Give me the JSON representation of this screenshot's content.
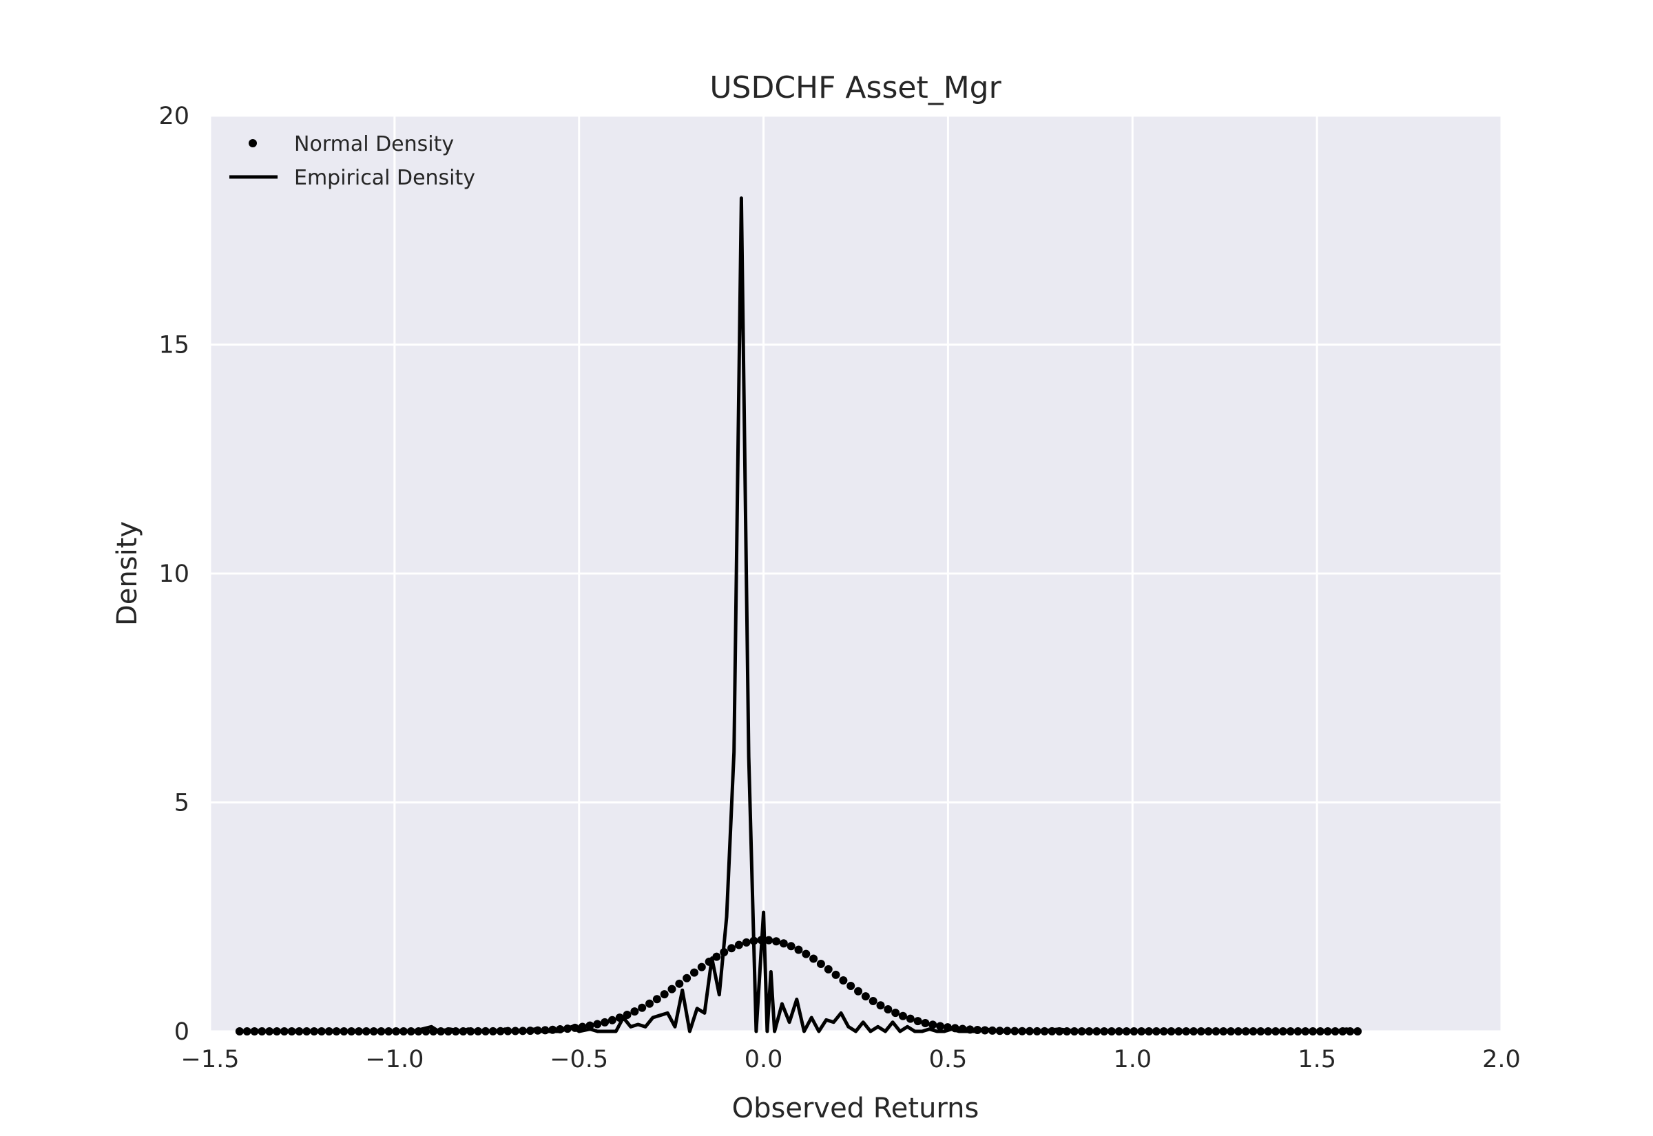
{
  "chart_data": {
    "type": "line",
    "title": "USDCHF Asset_Mgr",
    "xlabel": "Observed Returns",
    "ylabel": "Density",
    "xlim": [
      -1.5,
      2.0
    ],
    "ylim": [
      0,
      20
    ],
    "xticks": [
      -1.5,
      -1.0,
      -0.5,
      0.0,
      0.5,
      1.0,
      1.5,
      2.0
    ],
    "xtick_labels": [
      "−1.5",
      "−1.0",
      "−0.5",
      "0.0",
      "0.5",
      "1.0",
      "1.5",
      "2.0"
    ],
    "yticks": [
      0,
      5,
      10,
      15,
      20
    ],
    "ytick_labels": [
      "0",
      "5",
      "10",
      "15",
      "20"
    ],
    "grid": true,
    "legend_position": "top-left",
    "colors": {
      "plot_background": "#eaeaf2",
      "grid": "#ffffff",
      "series": "#000000"
    },
    "series": [
      {
        "name": "Normal Density",
        "style": "dots",
        "distribution": {
          "mean": 0.0,
          "std": 0.2,
          "x_min": -1.42,
          "x_max": 1.61,
          "n_points": 151
        }
      },
      {
        "name": "Empirical Density",
        "style": "line",
        "x": [
          -1.42,
          -1.3,
          -1.2,
          -1.1,
          -1.0,
          -0.95,
          -0.9,
          -0.88,
          -0.85,
          -0.82,
          -0.8,
          -0.78,
          -0.75,
          -0.72,
          -0.7,
          -0.68,
          -0.65,
          -0.62,
          -0.6,
          -0.58,
          -0.55,
          -0.52,
          -0.5,
          -0.47,
          -0.45,
          -0.42,
          -0.4,
          -0.38,
          -0.36,
          -0.34,
          -0.32,
          -0.3,
          -0.28,
          -0.26,
          -0.24,
          -0.22,
          -0.2,
          -0.18,
          -0.16,
          -0.14,
          -0.12,
          -0.1,
          -0.08,
          -0.06,
          -0.04,
          -0.02,
          0.0,
          0.01,
          0.02,
          0.03,
          0.05,
          0.07,
          0.09,
          0.11,
          0.13,
          0.15,
          0.17,
          0.19,
          0.21,
          0.23,
          0.25,
          0.27,
          0.29,
          0.31,
          0.33,
          0.35,
          0.37,
          0.39,
          0.41,
          0.43,
          0.45,
          0.47,
          0.49,
          0.51,
          0.53,
          0.55,
          0.57,
          0.6,
          0.65,
          0.7,
          0.75,
          0.8,
          0.85,
          0.9,
          1.0,
          1.1,
          1.2,
          1.3,
          1.4,
          1.5,
          1.55,
          1.58,
          1.6,
          1.61
        ],
        "y": [
          0.0,
          0.0,
          0.0,
          0.0,
          0.0,
          0.0,
          0.1,
          0.0,
          0.05,
          0.0,
          0.05,
          0.0,
          0.0,
          0.0,
          0.05,
          0.0,
          0.0,
          0.05,
          0.0,
          0.0,
          0.0,
          0.1,
          0.0,
          0.05,
          0.0,
          0.0,
          0.0,
          0.3,
          0.1,
          0.15,
          0.1,
          0.3,
          0.35,
          0.4,
          0.1,
          0.9,
          0.0,
          0.5,
          0.4,
          1.6,
          0.8,
          2.5,
          6.1,
          18.2,
          6.0,
          0.0,
          2.6,
          0.0,
          1.3,
          0.0,
          0.6,
          0.2,
          0.7,
          0.0,
          0.3,
          0.0,
          0.25,
          0.2,
          0.4,
          0.1,
          0.0,
          0.2,
          0.0,
          0.1,
          0.0,
          0.2,
          0.0,
          0.1,
          0.0,
          0.0,
          0.05,
          0.0,
          0.0,
          0.05,
          0.0,
          0.0,
          0.0,
          0.05,
          0.0,
          0.0,
          0.0,
          0.05,
          0.0,
          0.0,
          0.0,
          0.0,
          0.0,
          0.0,
          0.0,
          0.0,
          0.0,
          0.05,
          0.0,
          0.0
        ]
      }
    ]
  }
}
